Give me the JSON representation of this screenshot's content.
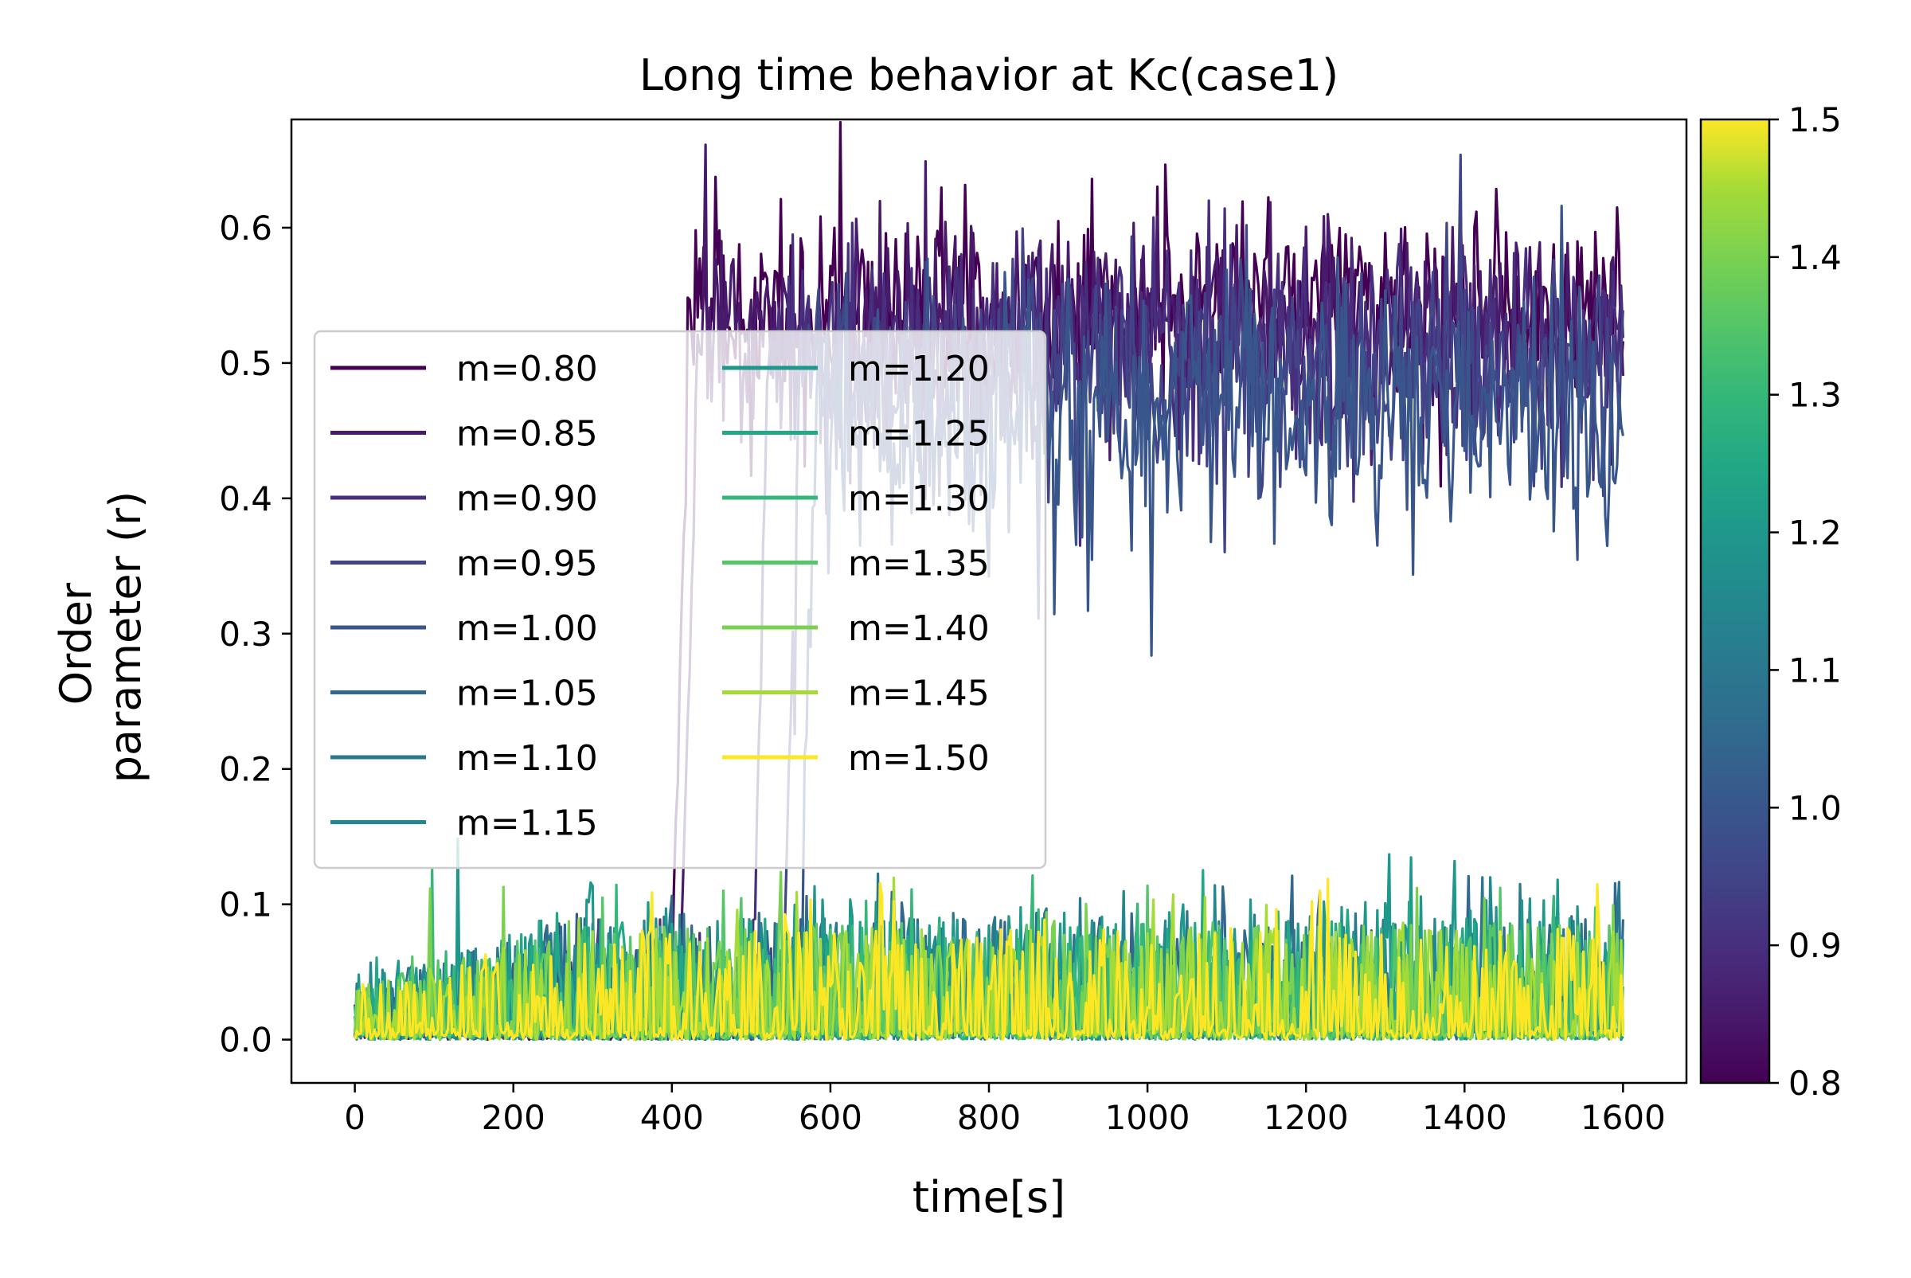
{
  "chart_data": {
    "type": "line",
    "title": "Long time behavior at Kc(case1)",
    "xlabel": "time[s]",
    "ylabel_lines": [
      "Order",
      "parameter (r)"
    ],
    "xlim": [
      -80,
      1680
    ],
    "ylim": [
      -0.032,
      0.68
    ],
    "xticks": [
      0,
      200,
      400,
      600,
      800,
      1000,
      1200,
      1400,
      1600
    ],
    "xtick_labels": [
      "0",
      "200",
      "400",
      "600",
      "800",
      "1000",
      "1200",
      "1400",
      "1600"
    ],
    "yticks": [
      0.0,
      0.1,
      0.2,
      0.3,
      0.4,
      0.5,
      0.6
    ],
    "ytick_labels": [
      "0.0",
      "0.1",
      "0.2",
      "0.3",
      "0.4",
      "0.5",
      "0.6"
    ],
    "grid": false,
    "legend_placement": "center-left",
    "legend_columns": 2,
    "colorbar": {
      "colormap": "viridis",
      "range": [
        0.8,
        1.5
      ],
      "ticks": [
        0.8,
        0.9,
        1.0,
        1.1,
        1.2,
        1.3,
        1.4,
        1.5
      ],
      "tick_labels": [
        "0.8",
        "0.9",
        "1.0",
        "1.1",
        "1.2",
        "1.3",
        "1.4",
        "1.5"
      ]
    },
    "series": [
      {
        "name": "m=0.80",
        "color": "#440154",
        "synchronized": true,
        "transition_time": 400,
        "plateau_mean": 0.54,
        "plateau_noise": 0.035,
        "baseline_mean": 0.02,
        "baseline_max": 0.085
      },
      {
        "name": "m=0.85",
        "color": "#481a6c",
        "synchronized": true,
        "transition_time": 410,
        "plateau_mean": 0.525,
        "plateau_noise": 0.035,
        "baseline_mean": 0.02,
        "baseline_max": 0.085
      },
      {
        "name": "m=0.90",
        "color": "#472f7d",
        "synchronized": true,
        "transition_time": 500,
        "plateau_mean": 0.51,
        "plateau_noise": 0.04,
        "baseline_mean": 0.02,
        "baseline_max": 0.09
      },
      {
        "name": "m=0.95",
        "color": "#414487",
        "synchronized": true,
        "transition_time": 540,
        "plateau_mean": 0.49,
        "plateau_noise": 0.04,
        "baseline_mean": 0.02,
        "baseline_max": 0.095
      },
      {
        "name": "m=1.00",
        "color": "#39568c",
        "synchronized": true,
        "transition_time": 560,
        "plateau_mean": 0.46,
        "plateau_noise": 0.045,
        "baseline_mean": 0.02,
        "baseline_max": 0.1
      },
      {
        "name": "m=1.05",
        "color": "#31688e",
        "synchronized": false,
        "baseline_mean": 0.022,
        "baseline_max": 0.125
      },
      {
        "name": "m=1.10",
        "color": "#2a788e",
        "synchronized": false,
        "baseline_mean": 0.022,
        "baseline_max": 0.125
      },
      {
        "name": "m=1.15",
        "color": "#23888e",
        "synchronized": false,
        "baseline_mean": 0.022,
        "baseline_max": 0.12
      },
      {
        "name": "m=1.20",
        "color": "#1f988b",
        "synchronized": false,
        "baseline_mean": 0.022,
        "baseline_max": 0.14
      },
      {
        "name": "m=1.25",
        "color": "#22a884",
        "synchronized": false,
        "baseline_mean": 0.022,
        "baseline_max": 0.12
      },
      {
        "name": "m=1.30",
        "color": "#35b779",
        "synchronized": false,
        "baseline_mean": 0.022,
        "baseline_max": 0.115
      },
      {
        "name": "m=1.35",
        "color": "#54c568",
        "synchronized": false,
        "baseline_mean": 0.022,
        "baseline_max": 0.115
      },
      {
        "name": "m=1.40",
        "color": "#7ad151",
        "synchronized": false,
        "baseline_mean": 0.022,
        "baseline_max": 0.115
      },
      {
        "name": "m=1.45",
        "color": "#a5db36",
        "synchronized": false,
        "baseline_mean": 0.022,
        "baseline_max": 0.11
      },
      {
        "name": "m=1.50",
        "color": "#fde725",
        "synchronized": false,
        "baseline_mean": 0.022,
        "baseline_max": 0.11
      }
    ]
  }
}
